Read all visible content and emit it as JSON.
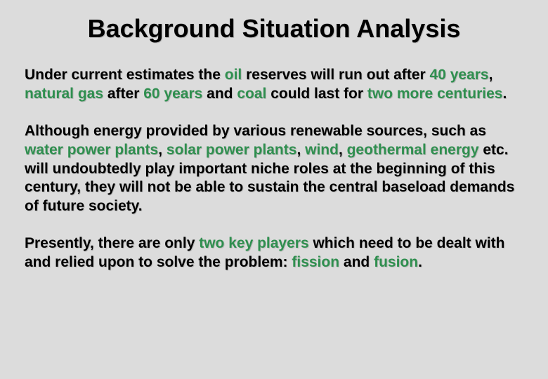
{
  "background_color": "#dcdcdc",
  "text_color": "#000000",
  "highlight_color": "#2f8f4f",
  "title": {
    "text": "Background Situation Analysis",
    "fontsize": 36,
    "fontweight": "bold"
  },
  "body_fontsize": 21,
  "body_fontweight": "bold",
  "paragraphs": [
    {
      "segments": [
        {
          "text": "Under current estimates the ",
          "hl": false
        },
        {
          "text": "oil",
          "hl": true
        },
        {
          "text": " reserves will run out after ",
          "hl": false
        },
        {
          "text": "40 years",
          "hl": true
        },
        {
          "text": ", ",
          "hl": false
        },
        {
          "text": "natural gas",
          "hl": true
        },
        {
          "text": " after ",
          "hl": false
        },
        {
          "text": "60 years",
          "hl": true
        },
        {
          "text": " and ",
          "hl": false
        },
        {
          "text": "coal",
          "hl": true
        },
        {
          "text": " could last for ",
          "hl": false
        },
        {
          "text": "two more centuries",
          "hl": true
        },
        {
          "text": ".",
          "hl": false
        }
      ]
    },
    {
      "segments": [
        {
          "text": "Although energy provided by various renewable sources, such as ",
          "hl": false
        },
        {
          "text": "water power plants",
          "hl": true
        },
        {
          "text": ", ",
          "hl": false
        },
        {
          "text": "solar power plants",
          "hl": true
        },
        {
          "text": ", ",
          "hl": false
        },
        {
          "text": "wind",
          "hl": true
        },
        {
          "text": ", ",
          "hl": false
        },
        {
          "text": "geothermal energy",
          "hl": true
        },
        {
          "text": " etc. will undoubtedly play important niche roles at the beginning of this century, they will not be able to sustain the central baseload demands of future society.",
          "hl": false
        }
      ]
    },
    {
      "segments": [
        {
          "text": "Presently, there are only ",
          "hl": false
        },
        {
          "text": "two key players",
          "hl": true
        },
        {
          "text": " which need to be dealt with and relied upon to solve the problem: ",
          "hl": false
        },
        {
          "text": "fission",
          "hl": true
        },
        {
          "text": " and ",
          "hl": false
        },
        {
          "text": "fusion",
          "hl": true
        },
        {
          "text": ".",
          "hl": false
        }
      ]
    }
  ]
}
